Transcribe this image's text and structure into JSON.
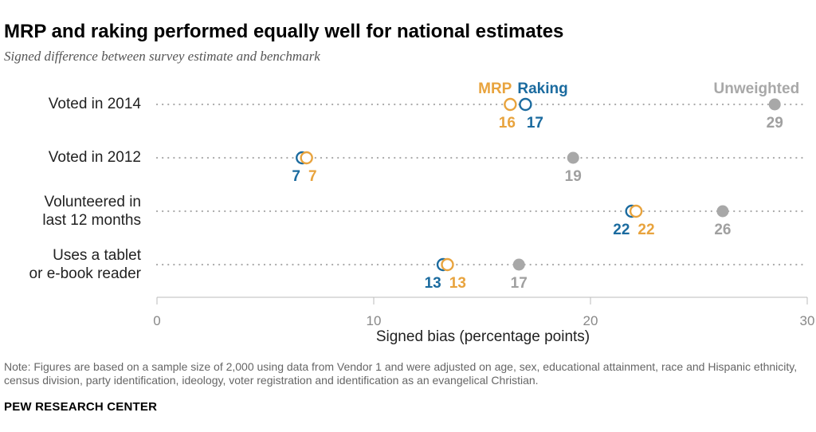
{
  "title": "MRP and raking performed equally well for national estimates",
  "subtitle": "Signed difference between survey estimate and benchmark",
  "note": "Note: Figures are based on a sample size of 2,000 using data from Vendor 1 and were adjusted on age, sex, educational attainment, race and Hispanic ethnicity, census division, party identification, ideology, voter registration and identification as an evangelical Christian.",
  "brand": "PEW RESEARCH CENTER",
  "colors": {
    "mrp": "#E8A33D",
    "raking": "#1B6B9F",
    "unweighted": "#A8A8A8",
    "axis": "#BBBBBB",
    "dots": "#AAAAAA"
  },
  "chart_data": {
    "type": "scatter",
    "title": "MRP and raking performed equally well for national estimates",
    "subtitle": "Signed difference between survey estimate and benchmark",
    "xlabel": "Signed bias (percentage points)",
    "ylabel": "",
    "xlim": [
      0,
      30
    ],
    "xticks": [
      0,
      10,
      20,
      30
    ],
    "categories": [
      "Voted in 2014",
      "Voted in 2012",
      "Volunteered in last 12 months",
      "Uses a tablet or e-book reader"
    ],
    "category_lines": [
      [
        "Voted in 2014"
      ],
      [
        "Voted in 2012"
      ],
      [
        "Volunteered in",
        "last 12 months"
      ],
      [
        "Uses a tablet",
        "or e-book reader"
      ]
    ],
    "series": [
      {
        "name": "MRP",
        "key": "mrp",
        "marker": "open-circle",
        "values": [
          16.3,
          6.9,
          22.1,
          13.4
        ],
        "labels": [
          "16",
          "7",
          "22",
          "13"
        ]
      },
      {
        "name": "Raking",
        "key": "raking",
        "marker": "open-circle",
        "values": [
          17.0,
          6.7,
          21.9,
          13.2
        ],
        "labels": [
          "17",
          "7",
          "22",
          "13"
        ]
      },
      {
        "name": "Unweighted",
        "key": "unweighted",
        "marker": "filled-circle",
        "values": [
          28.5,
          19.2,
          26.1,
          16.7
        ],
        "labels": [
          "29",
          "19",
          "26",
          "17"
        ]
      }
    ],
    "legend": [
      "MRP",
      "Raking",
      "Unweighted"
    ]
  }
}
